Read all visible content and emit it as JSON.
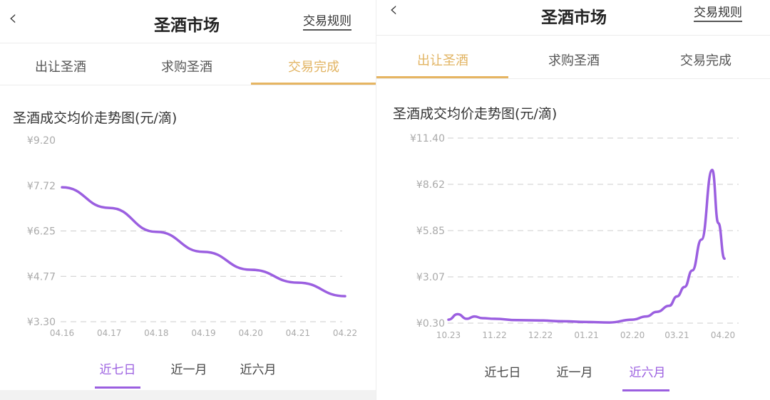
{
  "colors": {
    "accent_tab": "#e2b463",
    "line": "#9b5fe0",
    "grid": "#cccccc"
  },
  "left": {
    "header": {
      "back_icon": "chevron-left-icon",
      "title": "圣酒市场",
      "rules_link": "交易规则"
    },
    "tabs": [
      {
        "label": "出让圣酒",
        "active": false
      },
      {
        "label": "求购圣酒",
        "active": false
      },
      {
        "label": "交易完成",
        "active": true
      }
    ],
    "range_tabs": [
      {
        "label": "近七日",
        "active": true
      },
      {
        "label": "近一月",
        "active": false
      },
      {
        "label": "近六月",
        "active": false
      }
    ]
  },
  "right": {
    "header": {
      "back_icon": "chevron-left-icon",
      "title": "圣酒市场",
      "rules_link": "交易规则"
    },
    "tabs": [
      {
        "label": "出让圣酒",
        "active": true
      },
      {
        "label": "求购圣酒",
        "active": false
      },
      {
        "label": "交易完成",
        "active": false
      }
    ],
    "range_tabs": [
      {
        "label": "近七日",
        "active": false
      },
      {
        "label": "近一月",
        "active": false
      },
      {
        "label": "近六月",
        "active": true
      }
    ]
  },
  "chart_data": [
    {
      "type": "line",
      "title": "圣酒成交均价走势图(元/滴)",
      "y_ticks": [
        "¥9.20",
        "¥7.72",
        "¥6.25",
        "¥4.77",
        "¥3.30"
      ],
      "ylim": [
        3.3,
        9.2
      ],
      "x_ticks": [
        "04.16",
        "04.17",
        "04.18",
        "04.19",
        "04.20",
        "04.21",
        "04.22"
      ],
      "grid": "dashed horizontal",
      "x": [
        "04.16",
        "04.17",
        "04.18",
        "04.19",
        "04.20",
        "04.21",
        "04.22"
      ],
      "values": [
        7.67,
        7.0,
        6.22,
        5.57,
        4.99,
        4.57,
        4.13
      ]
    },
    {
      "type": "line",
      "title": "圣酒成交均价走势图(元/滴)",
      "y_ticks": [
        "¥11.40",
        "¥8.62",
        "¥5.85",
        "¥3.07",
        "¥0.30"
      ],
      "ylim": [
        0.3,
        11.4
      ],
      "x_ticks": [
        "10.23",
        "11.22",
        "12.22",
        "01.21",
        "02.20",
        "03.21",
        "04.20"
      ],
      "grid": "dashed horizontal",
      "x": [
        "10.23",
        "10.29",
        "11.04",
        "11.09",
        "11.14",
        "11.22",
        "12.07",
        "12.22",
        "01.06",
        "01.21",
        "02.05",
        "02.20",
        "03.01",
        "03.08",
        "03.16",
        "03.21",
        "03.26",
        "03.31",
        "04.06",
        "04.13",
        "04.17",
        "04.21"
      ],
      "values": [
        0.51,
        0.84,
        0.56,
        0.7,
        0.6,
        0.56,
        0.48,
        0.46,
        0.41,
        0.37,
        0.34,
        0.51,
        0.7,
        0.98,
        1.34,
        1.9,
        2.47,
        3.46,
        5.31,
        9.49,
        6.3,
        4.17
      ]
    }
  ]
}
